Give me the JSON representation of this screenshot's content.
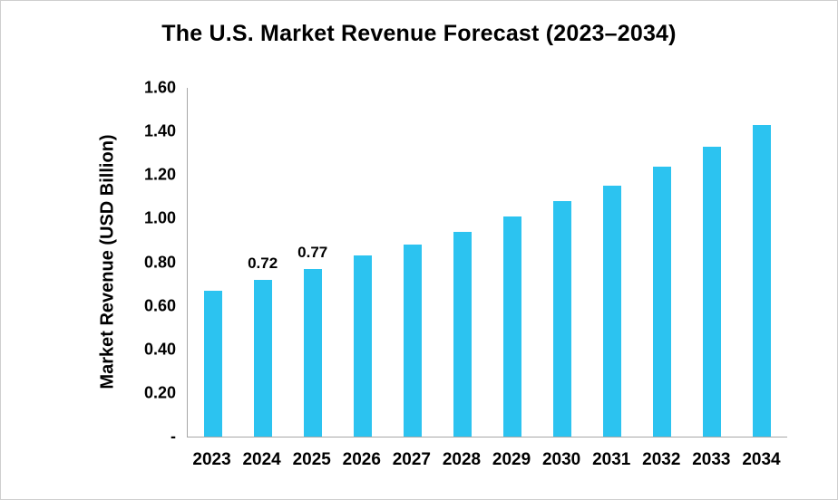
{
  "chart_data": {
    "type": "bar",
    "title": "The U.S. Market Revenue Forecast (2023–2034)",
    "xlabel": "",
    "ylabel": "Market Revenue (USD Billion)",
    "categories": [
      "2023",
      "2024",
      "2025",
      "2026",
      "2027",
      "2028",
      "2029",
      "2030",
      "2031",
      "2032",
      "2033",
      "2034"
    ],
    "values": [
      0.67,
      0.72,
      0.77,
      0.83,
      0.88,
      0.94,
      1.01,
      1.08,
      1.15,
      1.24,
      1.33,
      1.43
    ],
    "data_labels": [
      "",
      "0.72",
      "0.77",
      "",
      "",
      "",
      "",
      "",
      "",
      "",
      "",
      ""
    ],
    "ytick_labels": [
      "1.60",
      "1.40",
      "1.20",
      "1.00",
      "0.80",
      "0.60",
      "0.40",
      "0.20",
      "-"
    ],
    "ylim": [
      0,
      1.6
    ],
    "grid": false,
    "legend": "none",
    "bar_color": "#2cc3f0",
    "axis_color": "#a6a6a6",
    "text_color": "#000000"
  }
}
